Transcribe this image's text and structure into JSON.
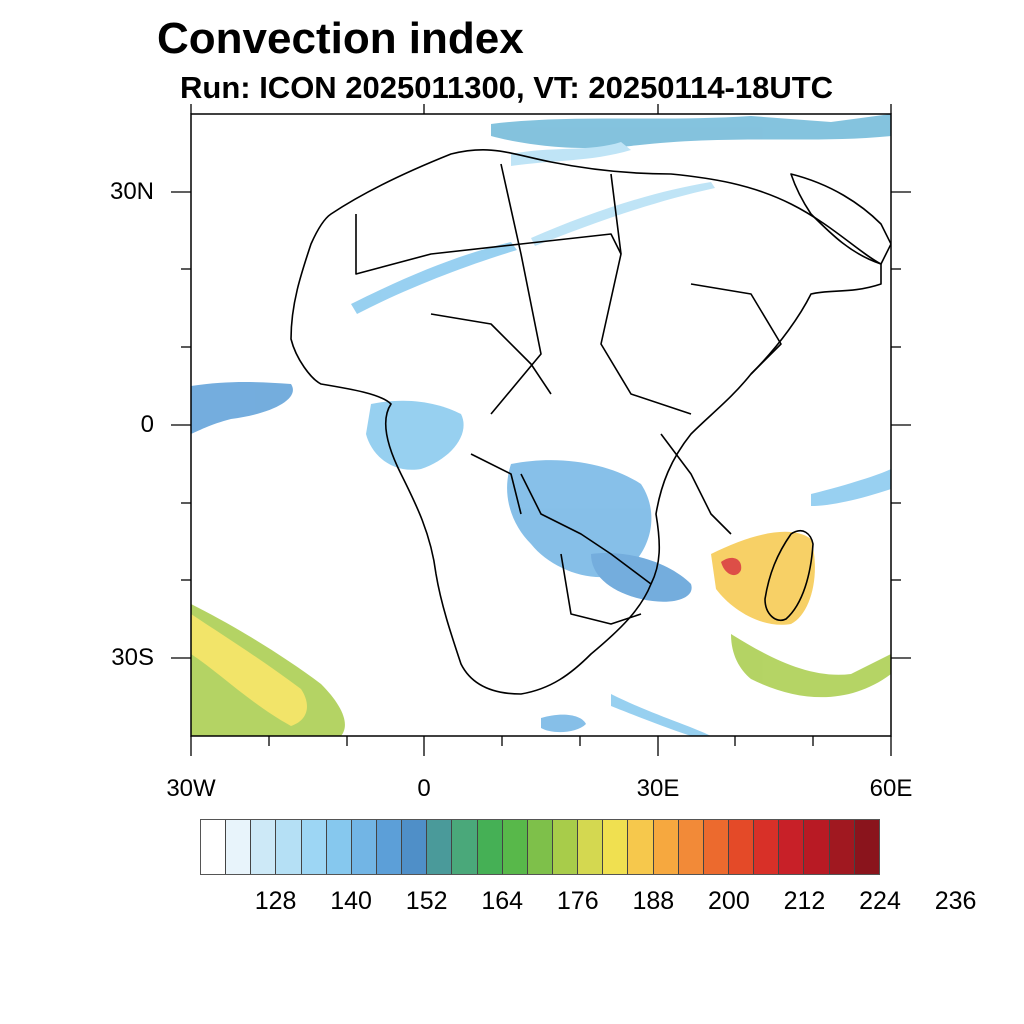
{
  "title": "Convection index",
  "subtitle": "Run: ICON 2025011300,  VT: 20250114-18UTC",
  "map": {
    "region": "Africa",
    "lon_range": [
      -30,
      60
    ],
    "lat_range": [
      -40,
      40
    ],
    "y_labels": [
      "30N",
      "0",
      "30S"
    ],
    "x_labels": [
      "30W",
      "0",
      "30E",
      "60E"
    ]
  },
  "colorbar": {
    "colors": [
      "#ffffff",
      "#e8f4fb",
      "#cde9f7",
      "#b5e0f5",
      "#9dd6f4",
      "#86c8ee",
      "#72b5e5",
      "#5c9fd8",
      "#4f8fc8",
      "#4a9a9a",
      "#4aa87a",
      "#45b055",
      "#58b84a",
      "#7ec04a",
      "#a8cc4a",
      "#d4d850",
      "#f0e050",
      "#f6c84c",
      "#f6a83f",
      "#f28a38",
      "#ec6a2e",
      "#e44a28",
      "#d83028",
      "#c82028",
      "#b81a24",
      "#a01820",
      "#8a141c"
    ],
    "labels": [
      "128",
      "140",
      "152",
      "164",
      "176",
      "188",
      "200",
      "212",
      "224",
      "236"
    ]
  }
}
